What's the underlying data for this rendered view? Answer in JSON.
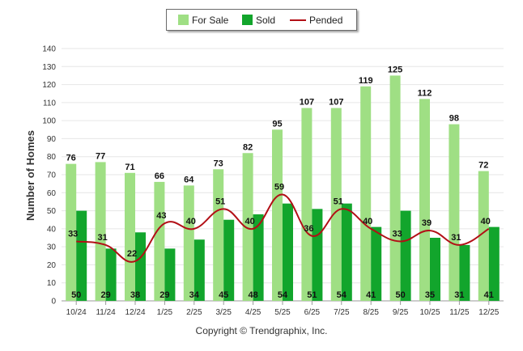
{
  "chart_data": {
    "type": "bar",
    "title": "",
    "xlabel": "",
    "ylabel": "Number of Homes",
    "ylim": [
      0,
      140
    ],
    "ytick_step": 10,
    "grid": true,
    "legend_position": "top-center",
    "categories": [
      "10/24",
      "11/24",
      "12/24",
      "1/25",
      "2/25",
      "3/25",
      "4/25",
      "5/25",
      "6/25",
      "7/25",
      "8/25",
      "9/25",
      "10/25",
      "11/25",
      "12/25"
    ],
    "series": [
      {
        "name": "For Sale",
        "type": "bar",
        "color": "#9fdf84",
        "values": [
          76,
          77,
          71,
          66,
          64,
          73,
          82,
          95,
          107,
          107,
          119,
          125,
          112,
          98,
          72
        ]
      },
      {
        "name": "Sold",
        "type": "bar",
        "color": "#12a52c",
        "values": [
          50,
          29,
          38,
          29,
          34,
          45,
          48,
          54,
          51,
          54,
          41,
          50,
          35,
          31,
          41
        ]
      },
      {
        "name": "Pended",
        "type": "line",
        "color": "#b20f16",
        "values": [
          33,
          31,
          22,
          43,
          40,
          51,
          40,
          59,
          36,
          51,
          40,
          33,
          39,
          31,
          40
        ]
      }
    ]
  },
  "footer": {
    "copyright": "Copyright © Trendgraphix, Inc."
  }
}
